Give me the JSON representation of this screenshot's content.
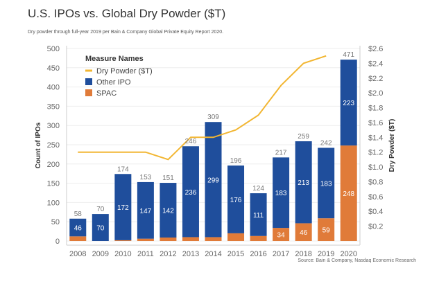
{
  "title": "U.S. IPOs vs. Global Dry Powder ($T)",
  "subtitle": "Dry powder through full-year 2019 per Bain & Company Global Private Equity Report 2020.",
  "source": "Source: Bain & Company, Nasdaq Economic Research",
  "colors": {
    "spac": "#e07b39",
    "other_ipo": "#1f4e9c",
    "dry_powder": "#f2b632"
  },
  "chart_data": {
    "type": "bar",
    "categories": [
      "2008",
      "2009",
      "2010",
      "2011",
      "2012",
      "2013",
      "2014",
      "2015",
      "2016",
      "2017",
      "2018",
      "2019",
      "2020"
    ],
    "series": [
      {
        "name": "SPAC",
        "values": [
          12,
          0,
          2,
          6,
          9,
          10,
          10,
          20,
          13,
          34,
          46,
          59,
          248
        ]
      },
      {
        "name": "Other IPO",
        "values": [
          46,
          70,
          172,
          147,
          142,
          236,
          299,
          176,
          111,
          183,
          213,
          183,
          223
        ]
      },
      {
        "name": "Dry Powder ($T)",
        "axis": "right",
        "type": "line",
        "values": [
          1.2,
          1.2,
          1.2,
          1.2,
          1.1,
          1.4,
          1.4,
          1.5,
          1.7,
          2.1,
          2.4,
          2.5,
          null
        ]
      }
    ],
    "totals": [
      58,
      70,
      174,
      153,
      151,
      246,
      309,
      196,
      124,
      217,
      259,
      242,
      471
    ],
    "segment_labels": {
      "other_ipo": [
        "46",
        "70",
        "172",
        "147",
        "142",
        "236",
        "299",
        "176",
        "111",
        "183",
        "213",
        "183",
        "223"
      ],
      "spac": [
        "",
        "",
        "",
        "",
        "",
        "",
        "",
        "",
        "",
        "34",
        "46",
        "59",
        "248"
      ]
    },
    "ylabel": "Count of IPOs",
    "y2label": "Dry Powder ($T)",
    "ylim": [
      0,
      500
    ],
    "y2lim": [
      0,
      2.6
    ],
    "yticks": [
      "0",
      "50",
      "100",
      "150",
      "200",
      "250",
      "300",
      "350",
      "400",
      "450",
      "500"
    ],
    "y2ticks": [
      "$0.2",
      "$0.4",
      "$0.6",
      "$0.8",
      "$1.0",
      "$1.2",
      "$1.4",
      "$1.6",
      "$1.8",
      "$2.0",
      "$2.2",
      "$2.4",
      "$2.6"
    ],
    "legend": {
      "title": "Measure Names",
      "items": [
        "Dry Powder ($T)",
        "Other IPO",
        "SPAC"
      ],
      "placement": "top-left"
    }
  }
}
